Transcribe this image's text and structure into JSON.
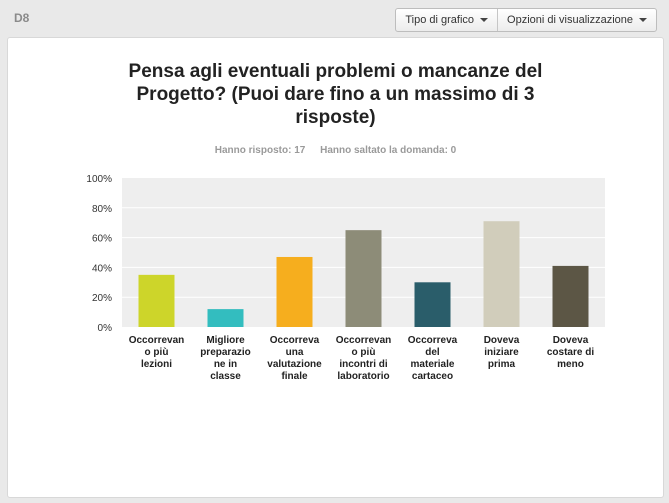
{
  "question_id": "D8",
  "toolbar": {
    "chart_type_label": "Tipo di grafico",
    "display_options_label": "Opzioni di visualizzazione"
  },
  "question": {
    "title": "Pensa agli eventuali problemi o mancanze del Progetto? (Puoi dare fino a un massimo di 3 risposte)",
    "answered": "Hanno risposto: 17",
    "skipped": "Hanno saltato la domanda: 0"
  },
  "chart_data": {
    "type": "bar",
    "categories": [
      [
        "Occorrevan",
        "o più",
        "lezioni"
      ],
      [
        "Migliore",
        "preparazio",
        "ne in",
        "classe"
      ],
      [
        "Occorreva",
        "una",
        "valutazione",
        "finale"
      ],
      [
        "Occorrevan",
        "o più",
        "incontri di",
        "laboratorio"
      ],
      [
        "Occorreva",
        "del",
        "materiale",
        "cartaceo"
      ],
      [
        "Doveva",
        "iniziare",
        "prima"
      ],
      [
        "Doveva",
        "costare di",
        "meno"
      ]
    ],
    "values": [
      35,
      12,
      47,
      65,
      30,
      71,
      41
    ],
    "colors": [
      "#cdd52a",
      "#33bdbf",
      "#f6ae1e",
      "#8d8c78",
      "#2a5d6a",
      "#d1cdbb",
      "#5c5645"
    ],
    "ylim": [
      0,
      100
    ],
    "yticks": [
      "0%",
      "20%",
      "40%",
      "60%",
      "80%",
      "100%"
    ],
    "grid": true
  }
}
